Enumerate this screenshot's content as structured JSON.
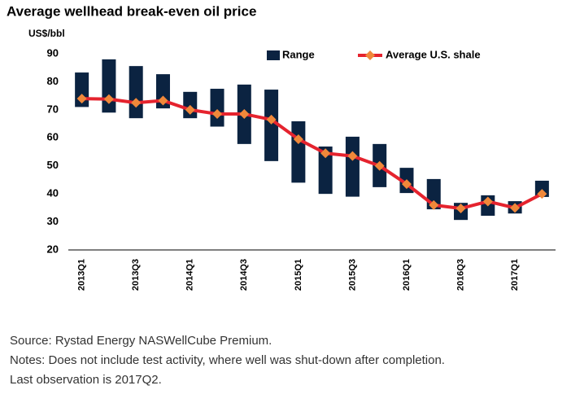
{
  "chart_data": {
    "type": "range-line",
    "title": "Average wellhead break-even oil price",
    "y_label": "US$/bbl",
    "categories": [
      "2013Q1",
      null,
      "2013Q3",
      null,
      "2014Q1",
      null,
      "2014Q3",
      null,
      "2015Q1",
      null,
      "2015Q3",
      null,
      "2016Q1",
      null,
      "2016Q3",
      null,
      "2017Q1",
      null
    ],
    "series": [
      {
        "name": "Range",
        "color": "#0b2341",
        "low": [
          71,
          69,
          67,
          70.5,
          67,
          64,
          57.8,
          51.7,
          44,
          40,
          39,
          42.4,
          40.3,
          34.5,
          30.7,
          32.2,
          33,
          38.9
        ],
        "high": [
          83.3,
          88,
          85.6,
          82.7,
          76.4,
          77.5,
          79,
          77.2,
          65.9,
          56.9,
          60.4,
          57.8,
          49.3,
          45.3,
          36.8,
          39.5,
          37.4,
          44.7
        ]
      },
      {
        "name": "Average U.S. shale",
        "color": "#e5232e",
        "marker_color": "#f0883a",
        "values": [
          74,
          73.8,
          72.5,
          73.3,
          70,
          68.5,
          68.5,
          66.5,
          59.5,
          54.5,
          53.5,
          50,
          43.5,
          36,
          34.8,
          37.3,
          35,
          40
        ]
      }
    ],
    "ylim": [
      20,
      90
    ],
    "yticks": [
      20,
      30,
      40,
      50,
      60,
      70,
      80,
      90
    ],
    "grid": false,
    "footnotes": [
      "Source: Rystad Energy NASWellCube Premium.",
      "Notes: Does not include test activity, where well was shut-down after completion.",
      "Last observation is 2017Q2."
    ]
  }
}
